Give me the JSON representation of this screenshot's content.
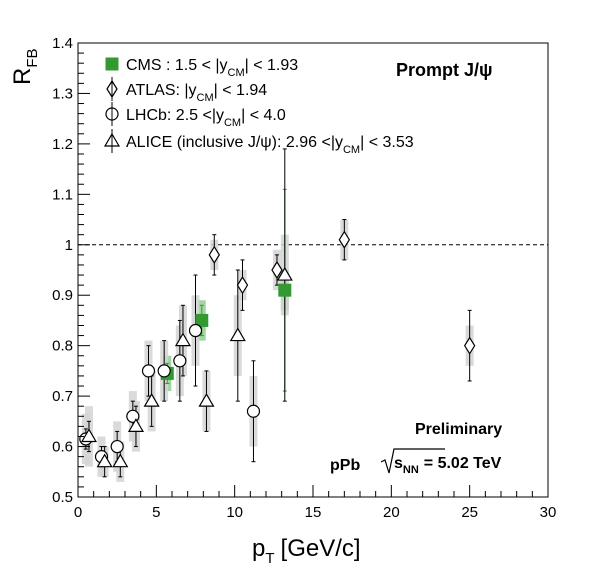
{
  "chart_data": {
    "type": "scatter",
    "xlabel_main": "p",
    "xlabel_sub": "T",
    "xlabel_unit": "[GeV/c]",
    "ylabel_main": "R",
    "ylabel_sub": "FB",
    "xlim": [
      0,
      30
    ],
    "ylim": [
      0.5,
      1.4
    ],
    "x_ticks": [
      "0",
      "5",
      "10",
      "15",
      "20",
      "25",
      "30"
    ],
    "y_ticks": [
      "0.5",
      "0.6",
      "0.7",
      "0.8",
      "0.9",
      "1",
      "1.1",
      "1.2",
      "1.3",
      "1.4"
    ],
    "reference_line": 1.0,
    "annotations": {
      "title": "Prompt J/ψ",
      "preliminary": "Preliminary",
      "system": "pPb",
      "energy": "s",
      "energy_sub": "NN",
      "energy_value": "= 5.02 TeV"
    },
    "legend": [
      {
        "marker": "square-filled",
        "text": "CMS : 1.5 < |y",
        "sub": "CM",
        "tail": "| < 1.93"
      },
      {
        "marker": "diamond-open",
        "text": "ATLAS: |y",
        "sub": "CM",
        "tail": "| < 1.94"
      },
      {
        "marker": "circle-open",
        "text": "LHCb: 2.5 <|y",
        "sub": "CM",
        "tail": "| < 4.0"
      },
      {
        "marker": "triangle-open",
        "text": "ALICE (inclusive  J/ψ): 2.96 <|y",
        "sub": "CM",
        "tail": "| < 3.53"
      }
    ],
    "series": [
      {
        "name": "CMS",
        "marker": "square-filled",
        "color": "#339933",
        "points": [
          {
            "x": 5.7,
            "y": 0.745,
            "stat": 0.02,
            "syst": 0.035
          },
          {
            "x": 7.9,
            "y": 0.85,
            "stat": 0.03,
            "syst": 0.04
          },
          {
            "x": 13.2,
            "y": 0.91,
            "stat": 0.2,
            "syst": 0.04
          }
        ]
      },
      {
        "name": "ATLAS",
        "marker": "diamond-open",
        "color": "#000000",
        "points": [
          {
            "x": 8.7,
            "y": 0.98,
            "stat": 0.04,
            "syst": 0.03
          },
          {
            "x": 10.5,
            "y": 0.92,
            "stat": 0.05,
            "syst": 0.03
          },
          {
            "x": 12.7,
            "y": 0.95,
            "stat": 0.03,
            "syst": 0.04
          },
          {
            "x": 17.0,
            "y": 1.01,
            "stat": 0.04,
            "syst": 0.04
          },
          {
            "x": 25.0,
            "y": 0.8,
            "stat": 0.07,
            "syst": 0.04
          }
        ]
      },
      {
        "name": "LHCb",
        "marker": "circle-open",
        "color": "#000000",
        "points": [
          {
            "x": 0.5,
            "y": 0.615,
            "stat": 0.02,
            "syst": 0.05
          },
          {
            "x": 1.5,
            "y": 0.58,
            "stat": 0.02,
            "syst": 0.04
          },
          {
            "x": 2.5,
            "y": 0.6,
            "stat": 0.03,
            "syst": 0.05
          },
          {
            "x": 3.5,
            "y": 0.66,
            "stat": 0.03,
            "syst": 0.05
          },
          {
            "x": 4.5,
            "y": 0.75,
            "stat": 0.05,
            "syst": 0.06
          },
          {
            "x": 5.5,
            "y": 0.75,
            "stat": 0.06,
            "syst": 0.06
          },
          {
            "x": 6.5,
            "y": 0.77,
            "stat": 0.08,
            "syst": 0.07
          },
          {
            "x": 7.5,
            "y": 0.83,
            "stat": 0.11,
            "syst": 0.07
          },
          {
            "x": 11.2,
            "y": 0.67,
            "stat": 0.1,
            "syst": 0.07
          }
        ]
      },
      {
        "name": "ALICE",
        "marker": "triangle-open",
        "color": "#000000",
        "points": [
          {
            "x": 0.7,
            "y": 0.62,
            "stat": 0.03,
            "syst": 0.06
          },
          {
            "x": 1.7,
            "y": 0.57,
            "stat": 0.03,
            "syst": 0.03
          },
          {
            "x": 2.7,
            "y": 0.57,
            "stat": 0.03,
            "syst": 0.04
          },
          {
            "x": 3.7,
            "y": 0.64,
            "stat": 0.04,
            "syst": 0.05
          },
          {
            "x": 4.7,
            "y": 0.69,
            "stat": 0.05,
            "syst": 0.06
          },
          {
            "x": 6.7,
            "y": 0.81,
            "stat": 0.07,
            "syst": 0.07
          },
          {
            "x": 8.2,
            "y": 0.69,
            "stat": 0.06,
            "syst": 0.06
          },
          {
            "x": 10.2,
            "y": 0.82,
            "stat": 0.13,
            "syst": 0.08
          },
          {
            "x": 13.2,
            "y": 0.94,
            "stat": 0.25,
            "syst": 0.08
          }
        ]
      }
    ]
  }
}
